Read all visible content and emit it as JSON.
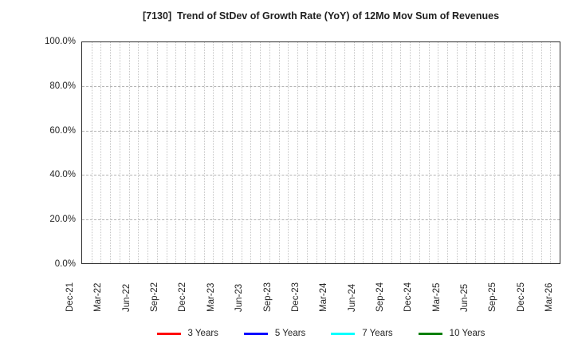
{
  "title": "[7130]  Trend of StDev of Growth Rate (YoY) of 12Mo Mov Sum of Revenues",
  "chart_data": {
    "type": "line",
    "title": "[7130]  Trend of StDev of Growth Rate (YoY) of 12Mo Mov Sum of Revenues",
    "xlabel": "",
    "ylabel": "",
    "ylim": [
      0,
      100
    ],
    "y_unit": "%",
    "y_tick_labels": [
      "0.0%",
      "20.0%",
      "40.0%",
      "60.0%",
      "80.0%",
      "100.0%"
    ],
    "x_tick_labels": [
      "Dec-21",
      "Mar-22",
      "Jun-22",
      "Sep-22",
      "Dec-22",
      "Mar-23",
      "Jun-23",
      "Sep-23",
      "Dec-23",
      "Mar-24",
      "Jun-24",
      "Sep-24",
      "Dec-24",
      "Mar-25",
      "Jun-25",
      "Sep-25",
      "Dec-25",
      "Mar-26"
    ],
    "x_range": [
      "Dec-21",
      "Mar-26"
    ],
    "x_total_months": 51,
    "x_months_per_labeled_tick": 3,
    "grid": true,
    "legend_position": "bottom",
    "series": [
      {
        "name": "3 Years",
        "color": "#ff0000",
        "values": []
      },
      {
        "name": "5 Years",
        "color": "#0000ff",
        "values": []
      },
      {
        "name": "7 Years",
        "color": "#00ffff",
        "values": []
      },
      {
        "name": "10 Years",
        "color": "#008000",
        "values": []
      }
    ],
    "note": "plot area contains gridlines only; no data lines drawn"
  }
}
